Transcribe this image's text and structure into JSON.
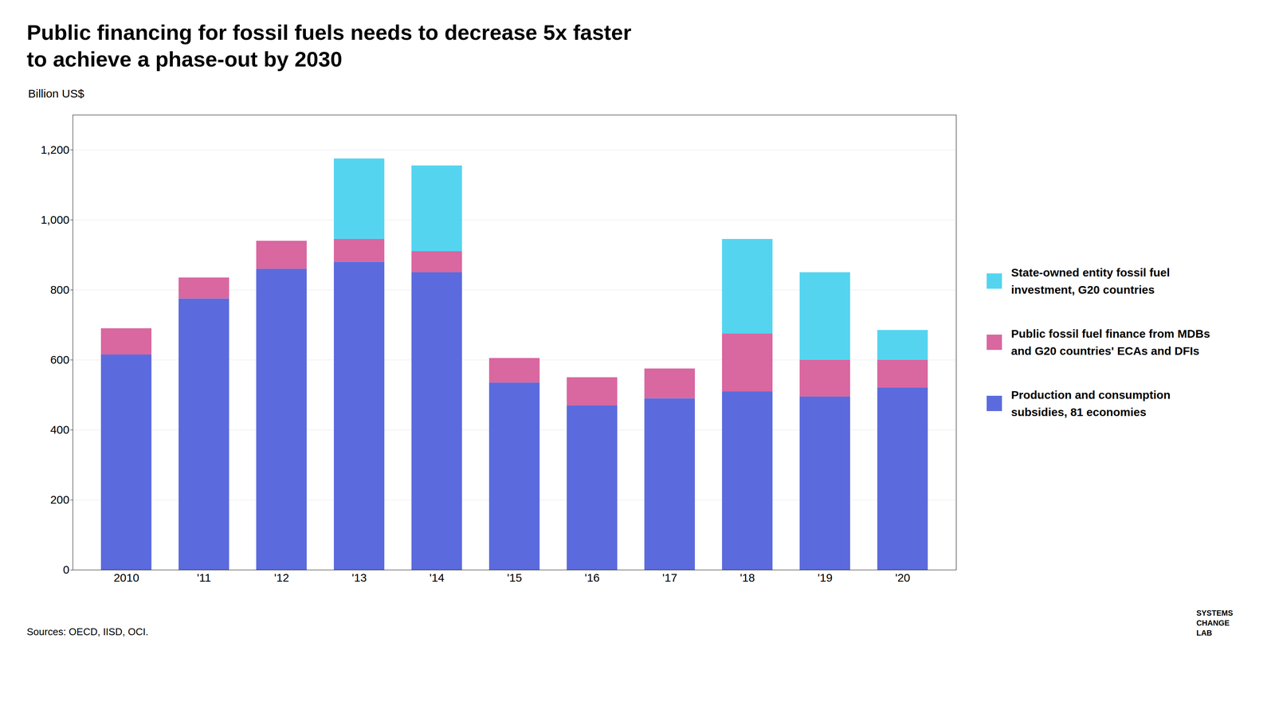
{
  "chart_data": {
    "type": "bar",
    "stacked": true,
    "title": "Public financing for fossil fuels needs to decrease 5x faster",
    "subtitle": "to achieve a phase-out by 2030",
    "ylabel": "Billion US$",
    "categories": [
      "2010",
      "'11",
      "'12",
      "'13",
      "'14",
      "'15",
      "'16",
      "'17",
      "'18",
      "'19",
      "'20"
    ],
    "series": [
      {
        "name": "Production and consumption\nsubsidies, 81 economies",
        "color": "#5B6BDD",
        "values": [
          615,
          775,
          860,
          880,
          850,
          535,
          470,
          490,
          510,
          495,
          520
        ]
      },
      {
        "name": "Public fossil fuel finance from MDBs\nand G20 countries' ECAs and DFIs",
        "color": "#D967A0",
        "values": [
          75,
          60,
          80,
          65,
          60,
          70,
          80,
          85,
          165,
          105,
          80
        ]
      },
      {
        "name": "State-owned entity fossil fuel\ninvestment, G20 countries",
        "color": "#55D4F0",
        "values": [
          0,
          0,
          0,
          230,
          245,
          0,
          0,
          0,
          270,
          250,
          85
        ]
      }
    ],
    "ylim": [
      0,
      1300
    ],
    "yticks": [
      0,
      200,
      400,
      600,
      800,
      {
        "value": 1000,
        "label": "1,000"
      },
      {
        "value": 1200,
        "label": "1,200"
      }
    ],
    "grid": true,
    "legend": "right",
    "caption": "Sources: OECD, IISD, OCI.",
    "annotations": [
      "SYSTEMS",
      "CHANGE",
      "LAB"
    ]
  }
}
